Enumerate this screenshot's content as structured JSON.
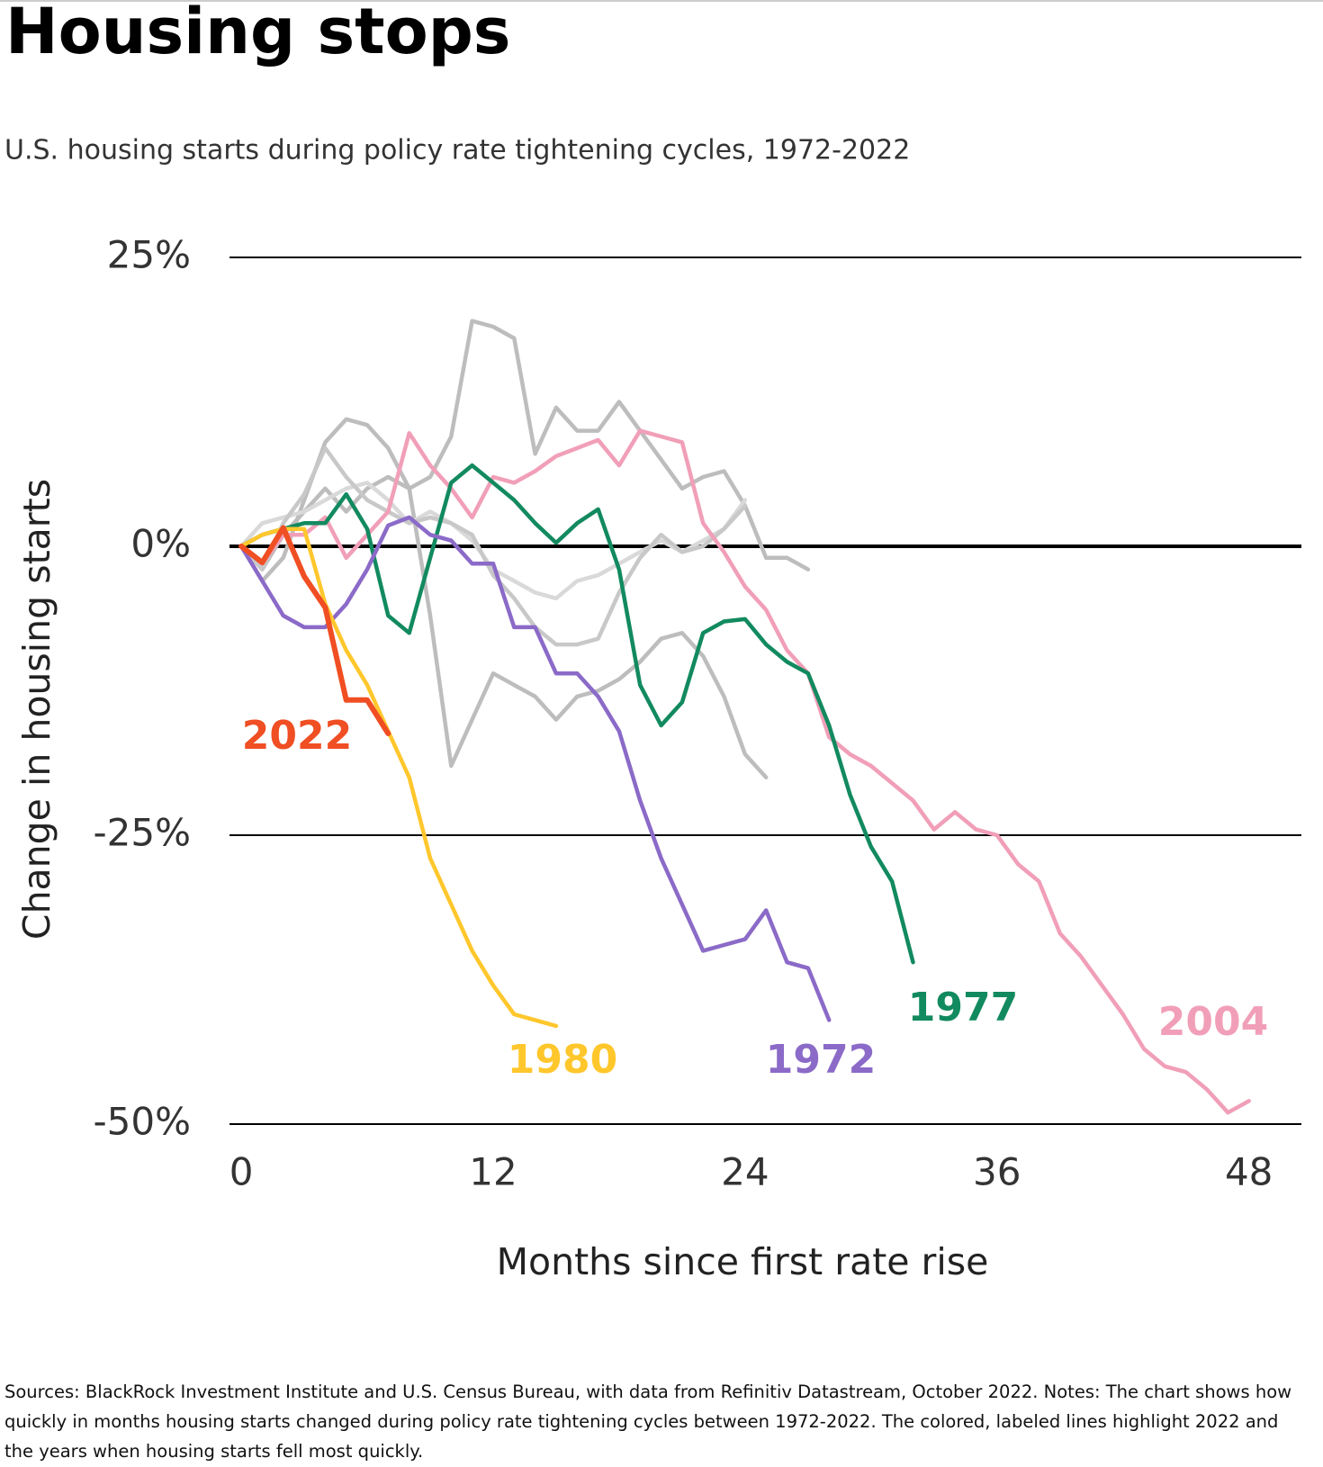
{
  "chart_data": {
    "type": "line",
    "title": "Housing stops",
    "subtitle": "U.S. housing starts during policy rate tightening cycles, 1972-2022",
    "x_label": "Months since first rate rise",
    "y_label": "Change in housing starts",
    "note": "Sources: BlackRock Investment Institute and U.S. Census Bureau, with data from Refinitiv Datastream, October 2022.  Notes: The chart shows how quickly in months housing starts changed during policy rate tightening cycles between 1972-2022. The colored, labeled lines highlight 2022 and the years when housing starts fell most quickly.",
    "xlim": [
      -0.56,
      50.5
    ],
    "xticks": [
      0,
      12,
      24,
      36,
      48
    ],
    "ylim": [
      -50,
      25
    ],
    "yticks": [
      {
        "value": -50,
        "label": "-50%"
      },
      {
        "value": -25,
        "label": "-25%"
      },
      {
        "value": 0,
        "label": "0%"
      },
      {
        "value": 25,
        "label": "25%"
      }
    ],
    "grid": true,
    "series": [
      {
        "color": "#bdbdbd",
        "x": [
          0,
          1,
          2,
          3,
          4,
          5,
          6,
          7,
          8,
          9,
          10,
          11,
          12,
          13,
          14,
          15,
          16,
          17,
          18,
          19,
          20,
          21,
          22,
          23,
          24,
          25,
          26,
          27
        ],
        "values": [
          0,
          -2,
          1,
          3,
          5,
          3,
          5,
          6,
          5,
          6,
          9.5,
          19.5,
          19,
          18,
          8,
          12,
          10,
          10,
          12.5,
          10,
          7.5,
          5,
          6,
          6.5,
          3.5,
          -1,
          -1,
          -2
        ]
      },
      {
        "color": "#bdbdbd",
        "x": [
          0,
          1,
          2,
          3,
          4,
          5,
          6,
          7,
          8,
          9,
          10,
          11,
          12,
          13,
          14,
          15,
          16,
          17,
          18,
          19,
          20,
          21,
          22,
          23,
          24,
          25
        ],
        "values": [
          0,
          -3,
          -1,
          4,
          9,
          11,
          10.5,
          8.5,
          5,
          -6,
          -19,
          -15,
          -11,
          -12,
          -13,
          -15,
          -13,
          -12.5,
          -11.5,
          -10,
          -8,
          -7.5,
          -9.5,
          -13,
          -18,
          -20
        ]
      },
      {
        "color": "#d9d9d9",
        "x": [
          0,
          1,
          2,
          3,
          4,
          5,
          6,
          7,
          8,
          9,
          10,
          11,
          12,
          13,
          14,
          15,
          16,
          17,
          18,
          19,
          20,
          21,
          22,
          23,
          24
        ],
        "values": [
          0,
          2,
          2.5,
          3,
          4,
          5,
          5.5,
          4,
          2,
          3,
          2,
          0.5,
          -2,
          -3,
          -4,
          -4.5,
          -3,
          -2.5,
          -1.5,
          -0.5,
          0.5,
          -0.5,
          0.5,
          1.5,
          4
        ]
      },
      {
        "color": "#c8c8c8",
        "x": [
          0,
          1,
          2,
          3,
          4,
          5,
          6,
          7,
          8,
          9,
          10,
          11,
          12,
          13,
          14,
          15,
          16,
          17,
          18,
          19,
          20,
          21,
          22,
          23,
          24
        ],
        "values": [
          0,
          -2,
          2,
          4.5,
          8.5,
          6,
          4,
          3,
          2,
          2.5,
          2,
          1,
          -2.5,
          -4.5,
          -7,
          -8.5,
          -8.5,
          -8,
          -4,
          -1,
          1,
          -0.5,
          0,
          1.5,
          3.5
        ]
      },
      {
        "name": "2004",
        "color": "#f19fb8",
        "x": [
          0,
          1,
          2,
          3,
          4,
          5,
          6,
          7,
          8,
          9,
          10,
          11,
          12,
          13,
          14,
          15,
          16,
          17,
          18,
          19,
          20,
          21,
          22,
          23,
          24,
          25,
          26,
          27,
          28,
          29,
          30,
          31,
          32,
          33,
          34,
          35,
          36,
          37,
          38,
          39,
          40,
          41,
          42,
          43,
          44,
          45,
          46,
          47,
          48
        ],
        "values": [
          0,
          -1.5,
          1,
          1,
          2.5,
          -1,
          1,
          3,
          9.8,
          7,
          5,
          2.5,
          6,
          5.5,
          6.5,
          7.8,
          8.5,
          9.2,
          7,
          10,
          9.5,
          9,
          2,
          -0.5,
          -3.5,
          -5.5,
          -9,
          -11,
          -16.5,
          -18,
          -19,
          -20.5,
          -22,
          -24.5,
          -23,
          -24.5,
          -25,
          -27.5,
          -29,
          -33.5,
          -35.5,
          -38,
          -40.5,
          -43.5,
          -45,
          -45.5,
          -47,
          -49,
          -48
        ]
      },
      {
        "name": "1977",
        "color": "#128a5f",
        "x": [
          0,
          1,
          2,
          3,
          4,
          5,
          6,
          7,
          8,
          9,
          10,
          11,
          12,
          13,
          14,
          15,
          16,
          17,
          18,
          19,
          20,
          21,
          22,
          23,
          24,
          25,
          26,
          27,
          28,
          29,
          30,
          31,
          32
        ],
        "values": [
          0,
          1,
          1.5,
          2,
          2,
          4.5,
          1.5,
          -6,
          -7.5,
          -1,
          5.5,
          7,
          5.5,
          4,
          2,
          0.3,
          2,
          3.2,
          -2,
          -12,
          -15.5,
          -13.5,
          -7.5,
          -6.5,
          -6.3,
          -8.5,
          -10,
          -11,
          -15.5,
          -21.5,
          -26,
          -29,
          -36
        ]
      },
      {
        "name": "1972",
        "color": "#8b6ac8",
        "x": [
          0,
          1,
          2,
          3,
          4,
          5,
          6,
          7,
          8,
          9,
          10,
          11,
          12,
          13,
          14,
          15,
          16,
          17,
          18,
          19,
          20,
          21,
          22,
          23,
          24,
          25,
          26,
          27,
          28
        ],
        "values": [
          0,
          -3,
          -6,
          -7,
          -7,
          -5,
          -2,
          1.8,
          2.5,
          1,
          0.5,
          -1.5,
          -1.5,
          -7,
          -7,
          -11,
          -11,
          -13,
          -16,
          -22,
          -27,
          -31,
          -35,
          -34.5,
          -34,
          -31.5,
          -36,
          -36.5,
          -41
        ]
      },
      {
        "name": "1980",
        "color": "#ffc72c",
        "x": [
          0,
          1,
          2,
          3,
          4,
          5,
          6,
          7,
          8,
          9,
          10,
          11,
          12,
          13,
          14,
          15
        ],
        "values": [
          0,
          1,
          1.5,
          1.5,
          -5,
          -9,
          -12,
          -16,
          -20,
          -27,
          -31,
          -35,
          -38,
          -40.5,
          -41,
          -41.5
        ]
      },
      {
        "name": "2022",
        "color": "#f04e23",
        "x": [
          0,
          1,
          2,
          3,
          4,
          5,
          6,
          7
        ],
        "values": [
          0,
          -1.4,
          1.6,
          -2.6,
          -5.3,
          -13.3,
          -13.3,
          -16.2
        ]
      }
    ]
  }
}
